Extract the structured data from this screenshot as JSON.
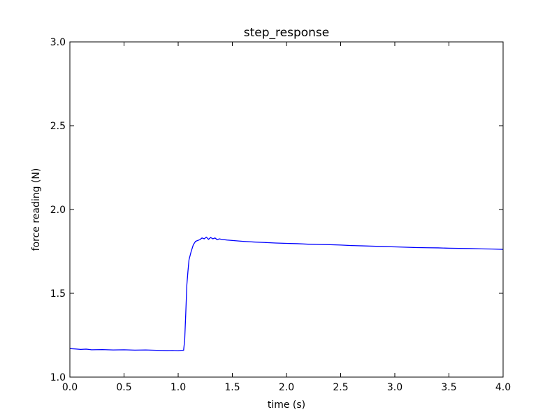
{
  "chart_data": {
    "type": "line",
    "title": "step_response",
    "xlabel": "time (s)",
    "ylabel": "force reading (N)",
    "xlim": [
      0.0,
      4.0
    ],
    "ylim": [
      1.0,
      3.0
    ],
    "xticks": [
      "0.0",
      "0.5",
      "1.0",
      "1.5",
      "2.0",
      "2.5",
      "3.0",
      "3.5",
      "4.0"
    ],
    "yticks": [
      "1.0",
      "1.5",
      "2.0",
      "2.5",
      "3.0"
    ],
    "grid": false,
    "colors": {
      "series": "#0000ff",
      "frame": "#000000"
    },
    "series": [
      {
        "x": [
          0.0,
          0.05,
          0.1,
          0.15,
          0.2,
          0.3,
          0.4,
          0.5,
          0.6,
          0.7,
          0.8,
          0.9,
          0.95,
          1.0,
          1.03,
          1.05,
          1.06,
          1.07,
          1.08,
          1.09,
          1.1,
          1.12,
          1.14,
          1.16,
          1.18,
          1.2,
          1.22,
          1.24,
          1.26,
          1.28,
          1.3,
          1.32,
          1.34,
          1.36,
          1.38,
          1.4,
          1.45,
          1.5,
          1.6,
          1.7,
          1.8,
          1.9,
          2.0,
          2.1,
          2.2,
          2.3,
          2.4,
          2.5,
          2.6,
          2.7,
          2.8,
          2.9,
          3.0,
          3.1,
          3.2,
          3.3,
          3.4,
          3.5,
          3.6,
          3.7,
          3.8,
          3.9,
          4.0
        ],
        "y": [
          1.17,
          1.168,
          1.165,
          1.167,
          1.163,
          1.164,
          1.162,
          1.163,
          1.161,
          1.162,
          1.16,
          1.158,
          1.159,
          1.157,
          1.16,
          1.16,
          1.22,
          1.38,
          1.55,
          1.63,
          1.7,
          1.75,
          1.79,
          1.81,
          1.815,
          1.82,
          1.83,
          1.825,
          1.835,
          1.822,
          1.833,
          1.825,
          1.83,
          1.82,
          1.825,
          1.822,
          1.818,
          1.815,
          1.81,
          1.806,
          1.803,
          1.8,
          1.798,
          1.796,
          1.793,
          1.791,
          1.79,
          1.788,
          1.785,
          1.783,
          1.781,
          1.779,
          1.777,
          1.775,
          1.773,
          1.772,
          1.771,
          1.769,
          1.768,
          1.767,
          1.765,
          1.764,
          1.762
        ]
      }
    ]
  }
}
